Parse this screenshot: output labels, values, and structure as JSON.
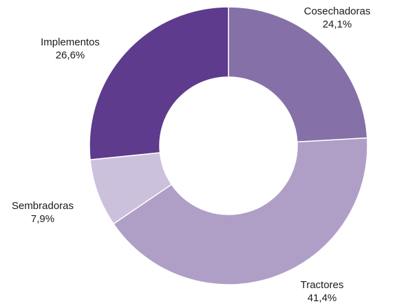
{
  "chart_data": {
    "type": "pie",
    "donut": true,
    "title": "",
    "labels": [
      "Cosechadoras",
      "Tractores",
      "Sembradoras",
      "Implementos"
    ],
    "values": [
      24.1,
      41.4,
      7.9,
      26.6
    ],
    "value_labels": [
      "24,1%",
      "41,4%",
      "7,9%",
      "26,6%"
    ],
    "colors": [
      "#8570a8",
      "#af9fc7",
      "#cbc1dc",
      "#5e3b8c"
    ],
    "start": "top",
    "direction": "clockwise",
    "legend": "none"
  }
}
